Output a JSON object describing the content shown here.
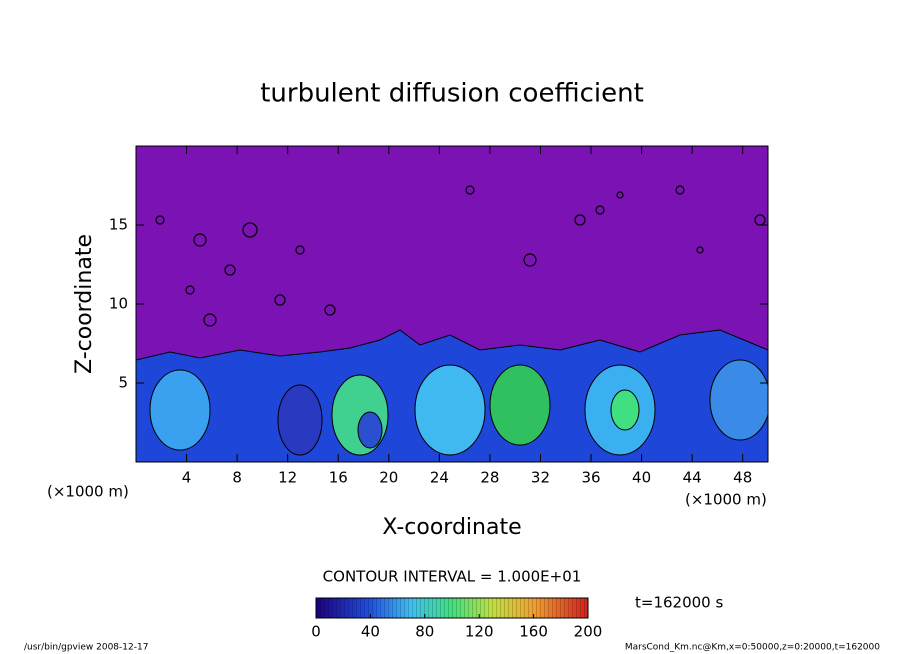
{
  "chart_data": {
    "type": "contour",
    "title": "turbulent diffusion coefficient",
    "xlabel": "X-coordinate",
    "ylabel": "Z-coordinate",
    "x_unit": "(×1000 m)",
    "y_unit": "(×1000 m)",
    "xlim": [
      0,
      50
    ],
    "ylim": [
      0,
      20
    ],
    "xticks": [
      4,
      8,
      12,
      16,
      20,
      24,
      28,
      32,
      36,
      40,
      44,
      48
    ],
    "yticks": [
      5,
      10,
      15
    ],
    "contour_interval": "CONTOUR INTERVAL = 1.000E+01",
    "time": "t=162000 s",
    "colorbar": {
      "lim": [
        0,
        200
      ],
      "ticks": [
        0,
        40,
        80,
        120,
        160,
        200
      ]
    },
    "footer_left": "/usr/bin/gpview   2008-12-17",
    "footer_right": "MarsCond_Km.nc@Km,x=0:50000,z=0:20000,t=162000"
  }
}
